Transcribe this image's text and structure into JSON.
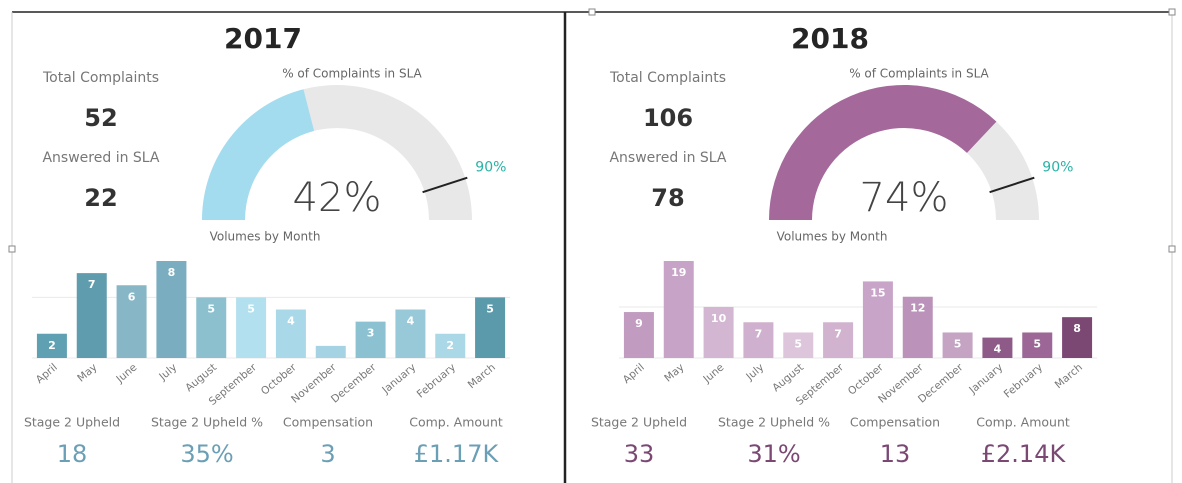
{
  "panels": [
    {
      "year": "2017",
      "kpis": [
        {
          "label": "Total Complaints",
          "value": "52"
        },
        {
          "label": "Answered in SLA",
          "value": "22"
        }
      ],
      "gauge": {
        "title": "% of Complaints in SLA",
        "value": 42,
        "value_label": "42%",
        "target": 90,
        "target_label": "90%",
        "range": [
          0,
          100
        ],
        "color": "#a4dcef"
      },
      "chart": {
        "type": "bar",
        "title": "Volumes by Month",
        "categories": [
          "April",
          "May",
          "June",
          "July",
          "August",
          "September",
          "October",
          "November",
          "December",
          "January",
          "February",
          "March"
        ],
        "values": [
          2,
          7,
          6,
          8,
          5,
          5,
          4,
          1,
          3,
          4,
          2,
          5
        ],
        "colors": [
          "#5fa0b2",
          "#5f9cad",
          "#87b7c6",
          "#7aadbf",
          "#8cc0cf",
          "#b3e0ee",
          "#a9d8e8",
          "#a6d3e3",
          "#8cc1d1",
          "#98c9d8",
          "#abd8e7",
          "#5b9aab"
        ],
        "ylim": [
          0,
          8
        ],
        "yticks": [
          0,
          5
        ]
      },
      "stats": [
        {
          "label": "Stage 2 Upheld",
          "value": "18"
        },
        {
          "label": "Stage 2 Upheld %",
          "value": "35%"
        },
        {
          "label": "Compensation",
          "value": "3"
        },
        {
          "label": "Comp. Amount",
          "value": "£1.17K"
        }
      ],
      "stat_color": "#6a9fb5"
    },
    {
      "year": "2018",
      "kpis": [
        {
          "label": "Total Complaints",
          "value": "106"
        },
        {
          "label": "Answered in SLA",
          "value": "78"
        }
      ],
      "gauge": {
        "title": "% of Complaints in SLA",
        "value": 74,
        "value_label": "74%",
        "target": 90,
        "target_label": "90%",
        "range": [
          0,
          100
        ],
        "color": "#a5689b"
      },
      "chart": {
        "type": "bar",
        "title": "Volumes by Month",
        "categories": [
          "April",
          "May",
          "June",
          "July",
          "August",
          "September",
          "October",
          "November",
          "December",
          "January",
          "February",
          "March"
        ],
        "values": [
          9,
          19,
          10,
          7,
          5,
          7,
          15,
          12,
          5,
          4,
          5,
          8
        ],
        "colors": [
          "#c19bc0",
          "#c8a3c8",
          "#d3b6d2",
          "#cfb0ce",
          "#ddc6dc",
          "#d1b3d0",
          "#c9a4c9",
          "#bb92b9",
          "#c4a3c3",
          "#8e5b89",
          "#9c6696",
          "#7b4874"
        ],
        "ylim": [
          0,
          19
        ],
        "yticks": [
          0,
          10
        ]
      },
      "stats": [
        {
          "label": "Stage 2 Upheld",
          "value": "33"
        },
        {
          "label": "Stage 2 Upheld %",
          "value": "31%"
        },
        {
          "label": "Compensation",
          "value": "13"
        },
        {
          "label": "Comp. Amount",
          "value": "£2.14K"
        }
      ],
      "stat_color": "#7b4874"
    }
  ]
}
